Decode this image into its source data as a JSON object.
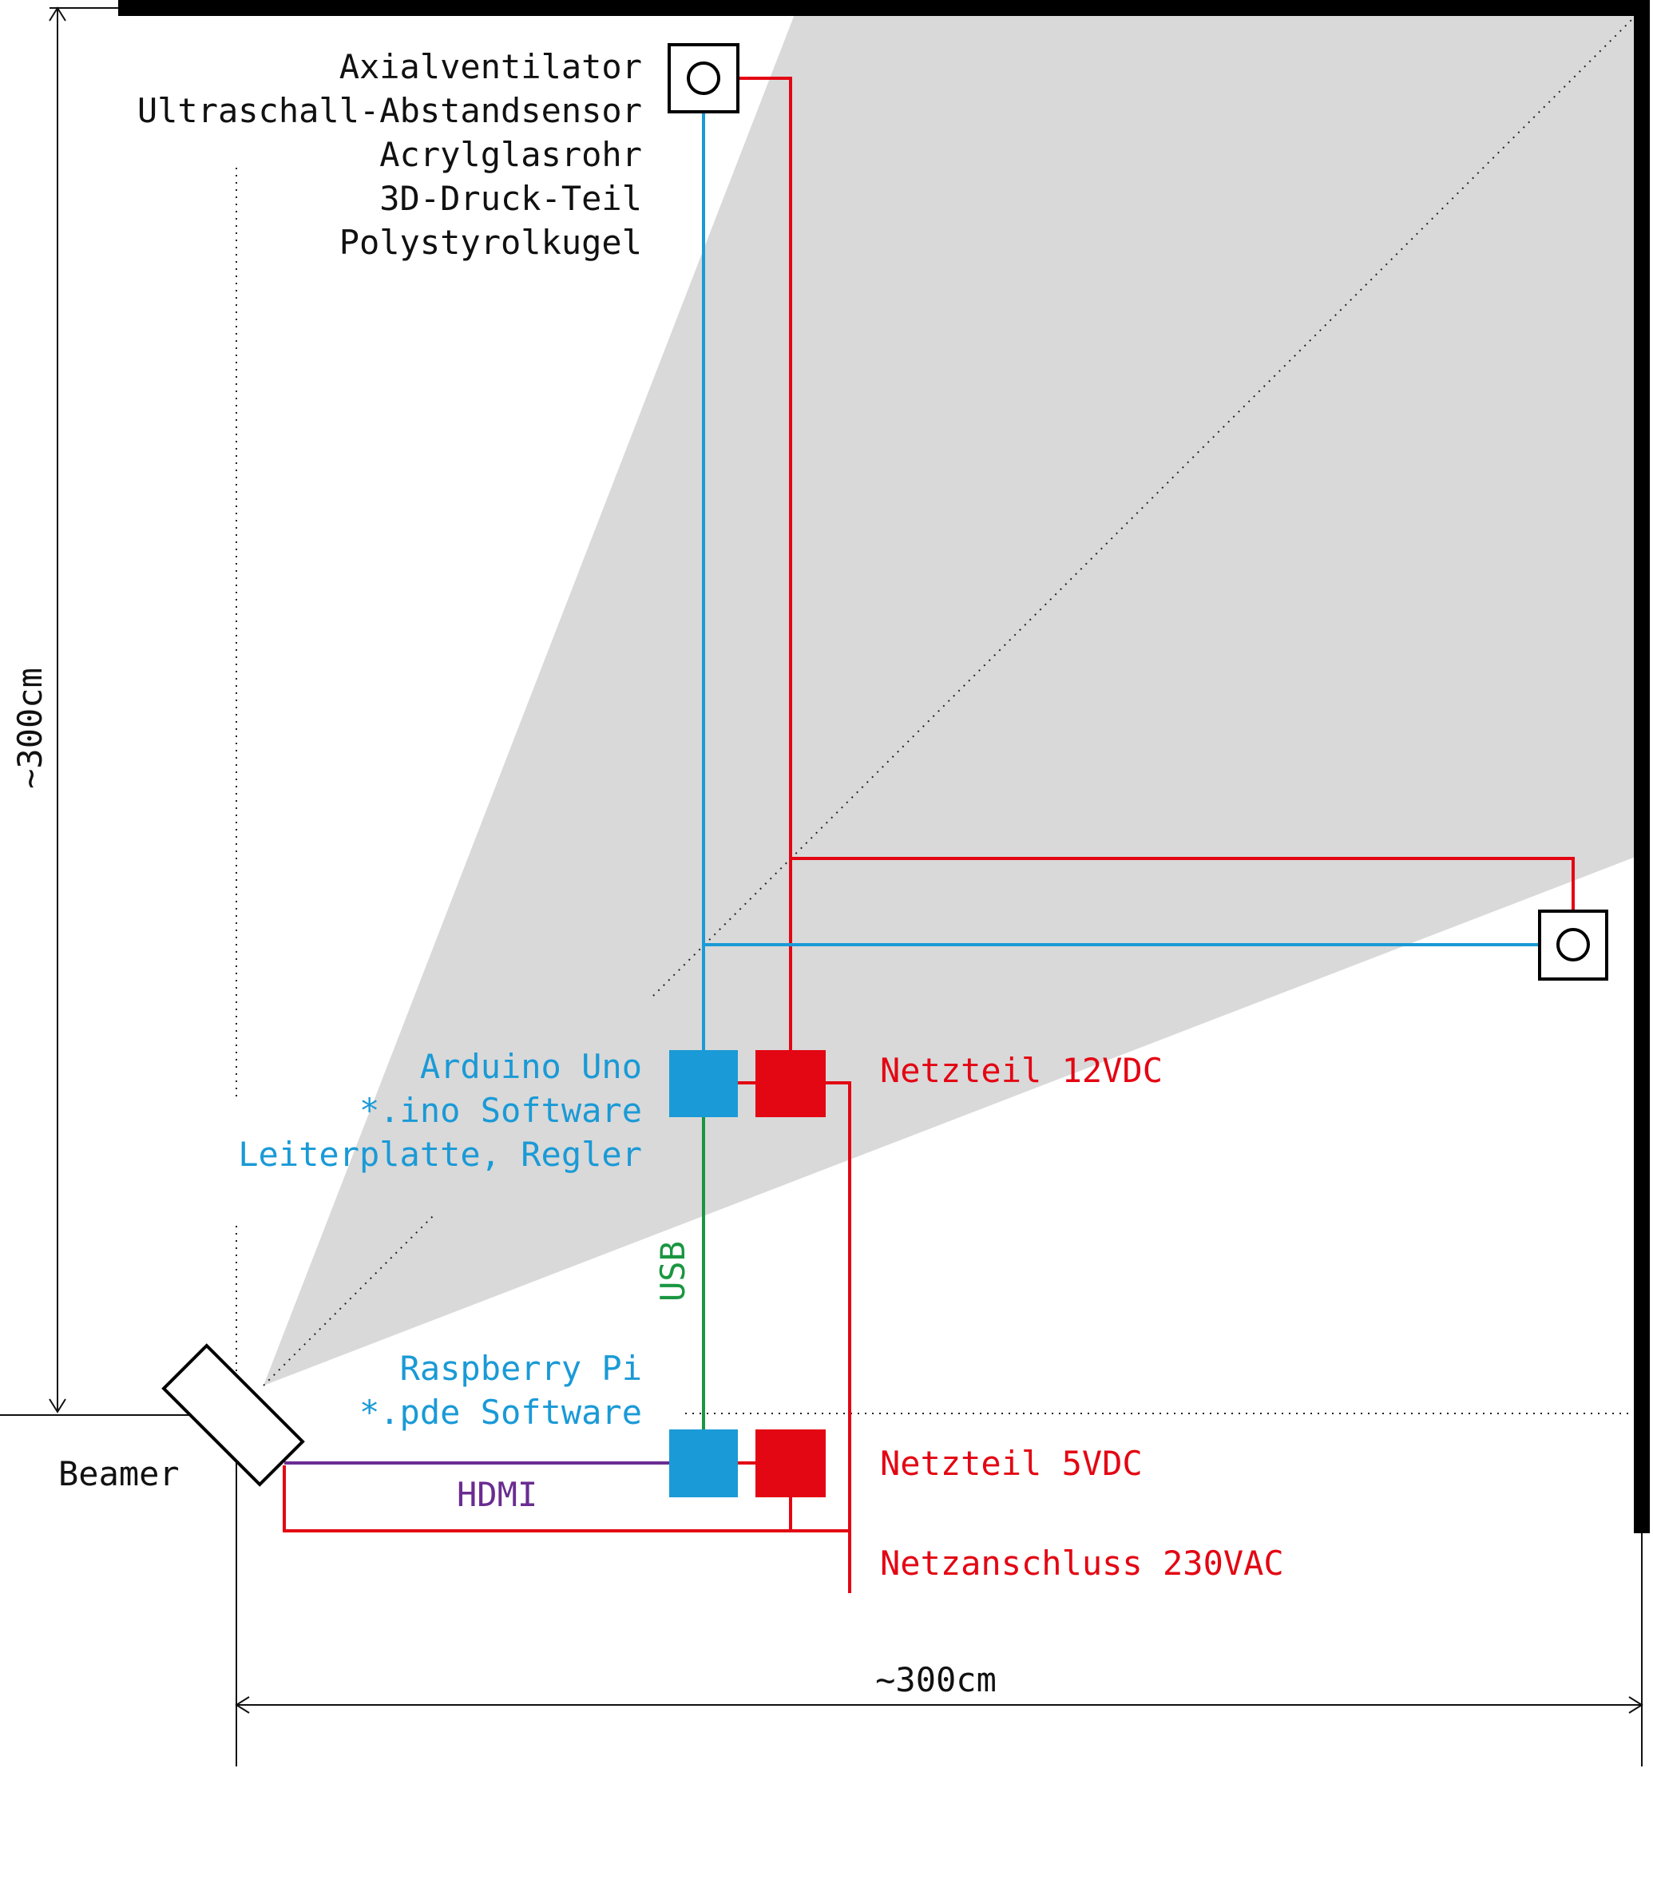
{
  "components": {
    "fan_lines": [
      "Axialventilator",
      "Ultraschall-Abstandsensor",
      "Acrylglasrohr",
      "3D-Druck-Teil",
      "Polystyrolkugel"
    ],
    "arduino_lines": [
      "Arduino Uno",
      "*.ino Software",
      "Leiterplatte, Regler"
    ],
    "raspberry_lines": [
      "Raspberry Pi",
      "*.pde Software"
    ],
    "beamer": "Beamer",
    "psu_12v": "Netzteil 12VDC",
    "psu_5v": "Netzteil 5VDC",
    "mains": "Netzanschluss 230VAC"
  },
  "connections": {
    "usb": "USB",
    "hdmi": "HDMI"
  },
  "dimensions": {
    "height": "~300cm",
    "width": "~300cm"
  },
  "colors": {
    "signal": "#1a9ad6",
    "power": "#e30613",
    "usb": "#1a9641",
    "hdmi": "#6a2c91",
    "projection": "#d9d9d9",
    "wall": "#000000",
    "text": "#111111"
  }
}
